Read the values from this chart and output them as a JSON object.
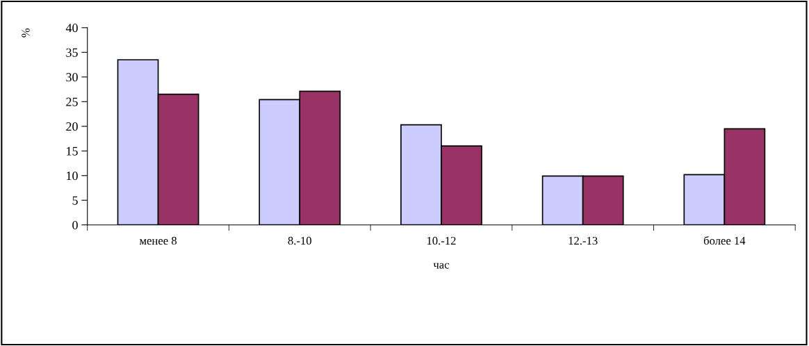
{
  "chart_data": {
    "type": "bar",
    "xlabel": "час",
    "ylabel": "%",
    "categories": [
      "менее 8",
      "8.-10",
      "10.-12",
      "12.-13",
      "более 14"
    ],
    "series": [
      {
        "color": "#ccccff",
        "values": [
          33.5,
          25.4,
          20.3,
          9.9,
          10.2
        ]
      },
      {
        "color": "#993366",
        "values": [
          26.5,
          27.1,
          16.0,
          9.9,
          19.5
        ]
      }
    ],
    "ylim": [
      0,
      40
    ],
    "yticks": [
      0,
      5,
      10,
      15,
      20,
      25,
      30,
      35,
      40
    ],
    "grid": false
  }
}
